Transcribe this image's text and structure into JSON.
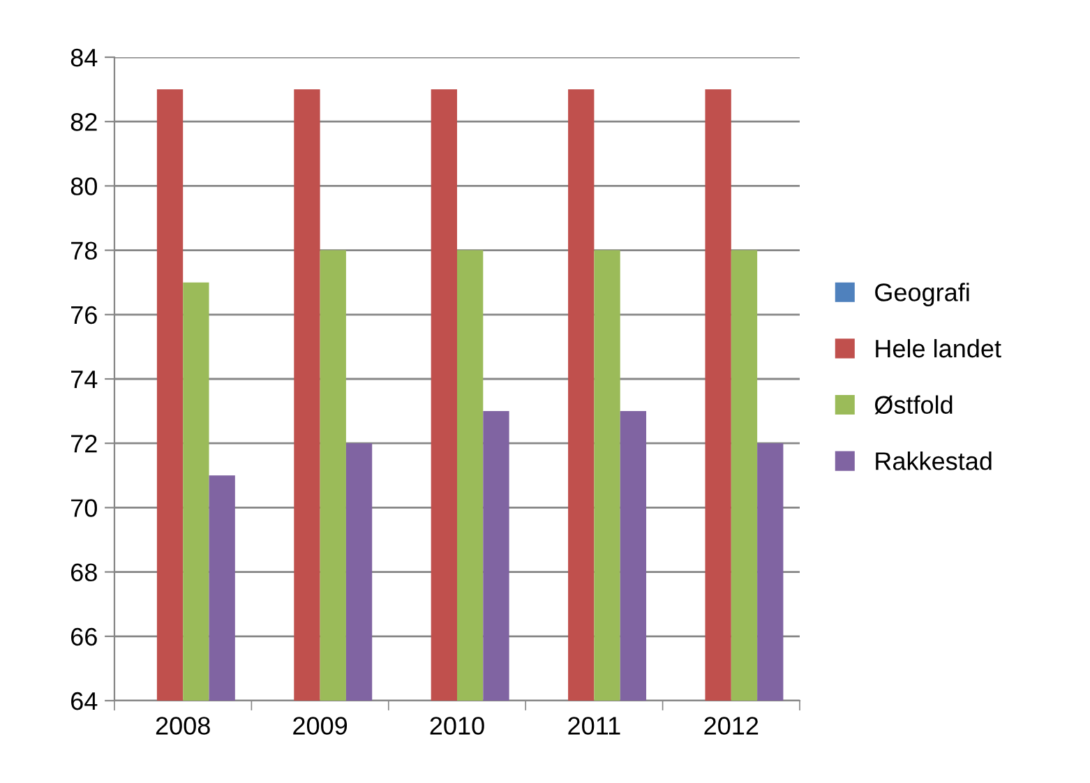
{
  "chart_data": {
    "type": "bar",
    "categories": [
      "2008",
      "2009",
      "2010",
      "2011",
      "2012"
    ],
    "series": [
      {
        "name": "Geografi",
        "color": "#4f81bd",
        "values": [
          null,
          null,
          null,
          null,
          null
        ]
      },
      {
        "name": "Hele landet",
        "color": "#c0504d",
        "values": [
          83,
          83,
          83,
          83,
          83
        ]
      },
      {
        "name": "Østfold",
        "color": "#9bbb59",
        "values": [
          77,
          78,
          78,
          78,
          78
        ]
      },
      {
        "name": "Rakkestad",
        "color": "#8064a2",
        "values": [
          71,
          72,
          73,
          73,
          72
        ]
      }
    ],
    "ylim": [
      64,
      84
    ],
    "yticks": [
      64,
      66,
      68,
      70,
      72,
      74,
      76,
      78,
      80,
      82,
      84
    ],
    "grid": "y",
    "legend": "right"
  }
}
